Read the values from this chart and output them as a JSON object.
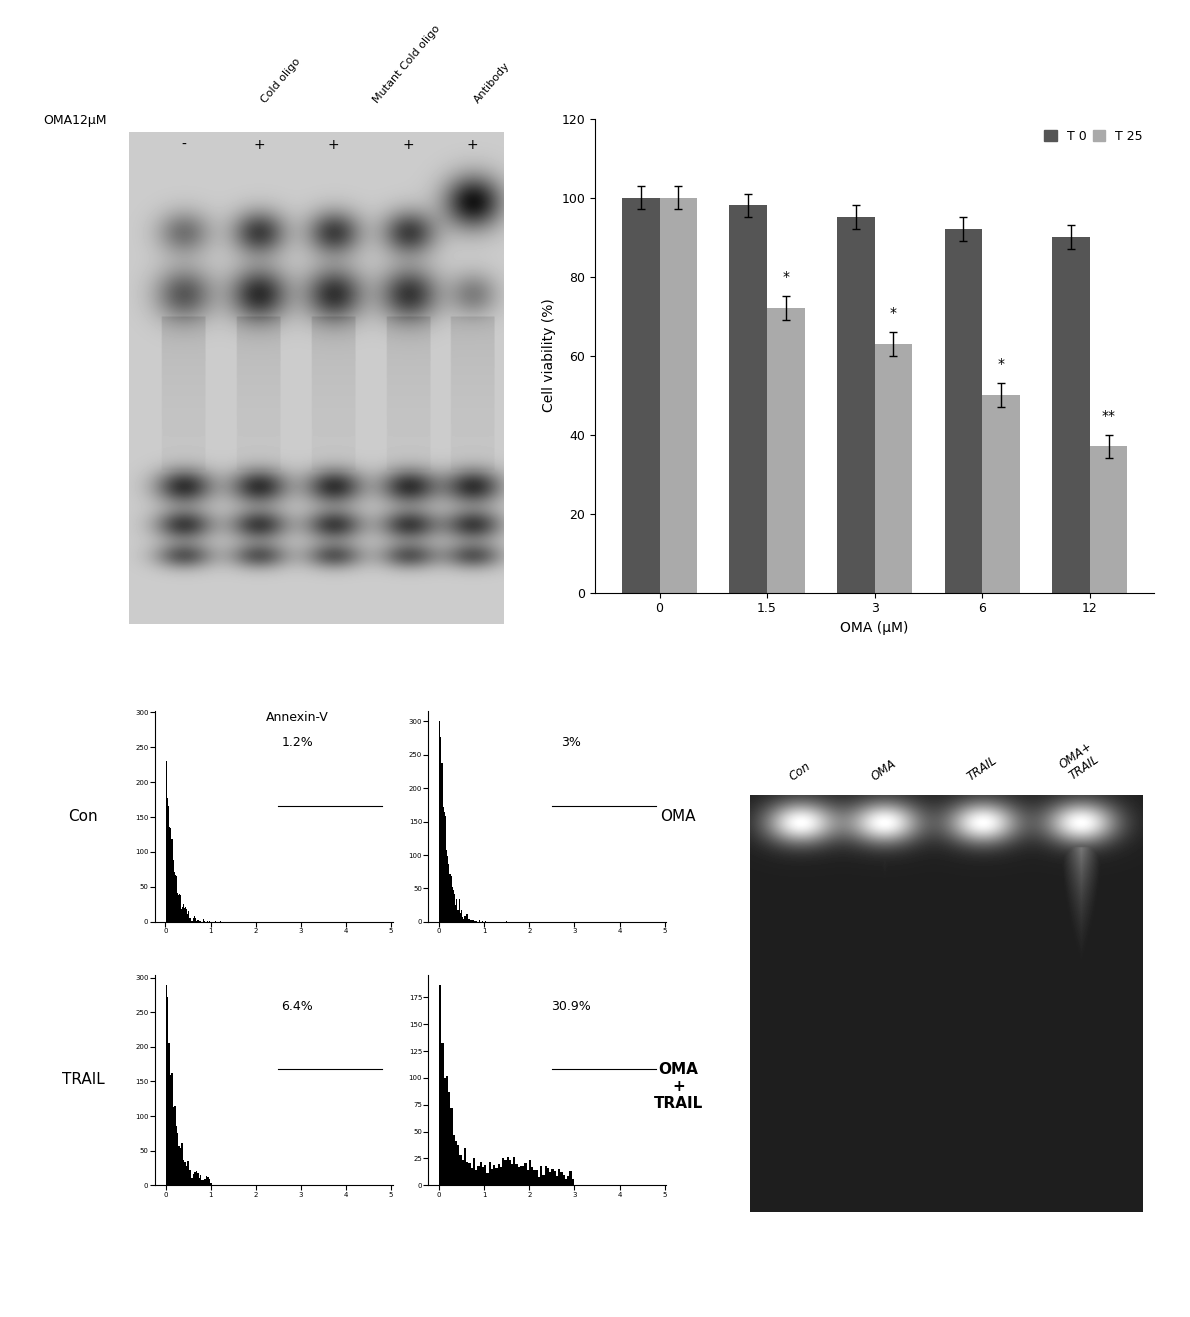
{
  "bar_t0": [
    100,
    98,
    95,
    92,
    90
  ],
  "bar_t25": [
    100,
    72,
    63,
    50,
    37
  ],
  "bar_t0_err": [
    3,
    3,
    3,
    3,
    3
  ],
  "bar_t25_err": [
    3,
    3,
    3,
    3,
    3
  ],
  "oma_labels": [
    "0",
    "1.5",
    "3",
    "6",
    "12"
  ],
  "color_t0": "#555555",
  "color_t25": "#aaaaaa",
  "ylabel": "Cell viability (%)",
  "xlabel": "OMA (μM)",
  "ylim": [
    0,
    120
  ],
  "yticks": [
    0,
    20,
    40,
    60,
    80,
    100,
    120
  ],
  "legend_t0": "T 0",
  "legend_t25": "T 25",
  "star_positions": [
    {
      "x": 1,
      "label": "*"
    },
    {
      "x": 2,
      "label": "*"
    },
    {
      "x": 3,
      "label": "*"
    },
    {
      "x": 4,
      "label": "**"
    }
  ],
  "flow_percentages": [
    "1.2%",
    "3%",
    "6.4%",
    "30.9%"
  ],
  "flow_annex_label": "Annexin-V",
  "background_color": "#ffffff"
}
